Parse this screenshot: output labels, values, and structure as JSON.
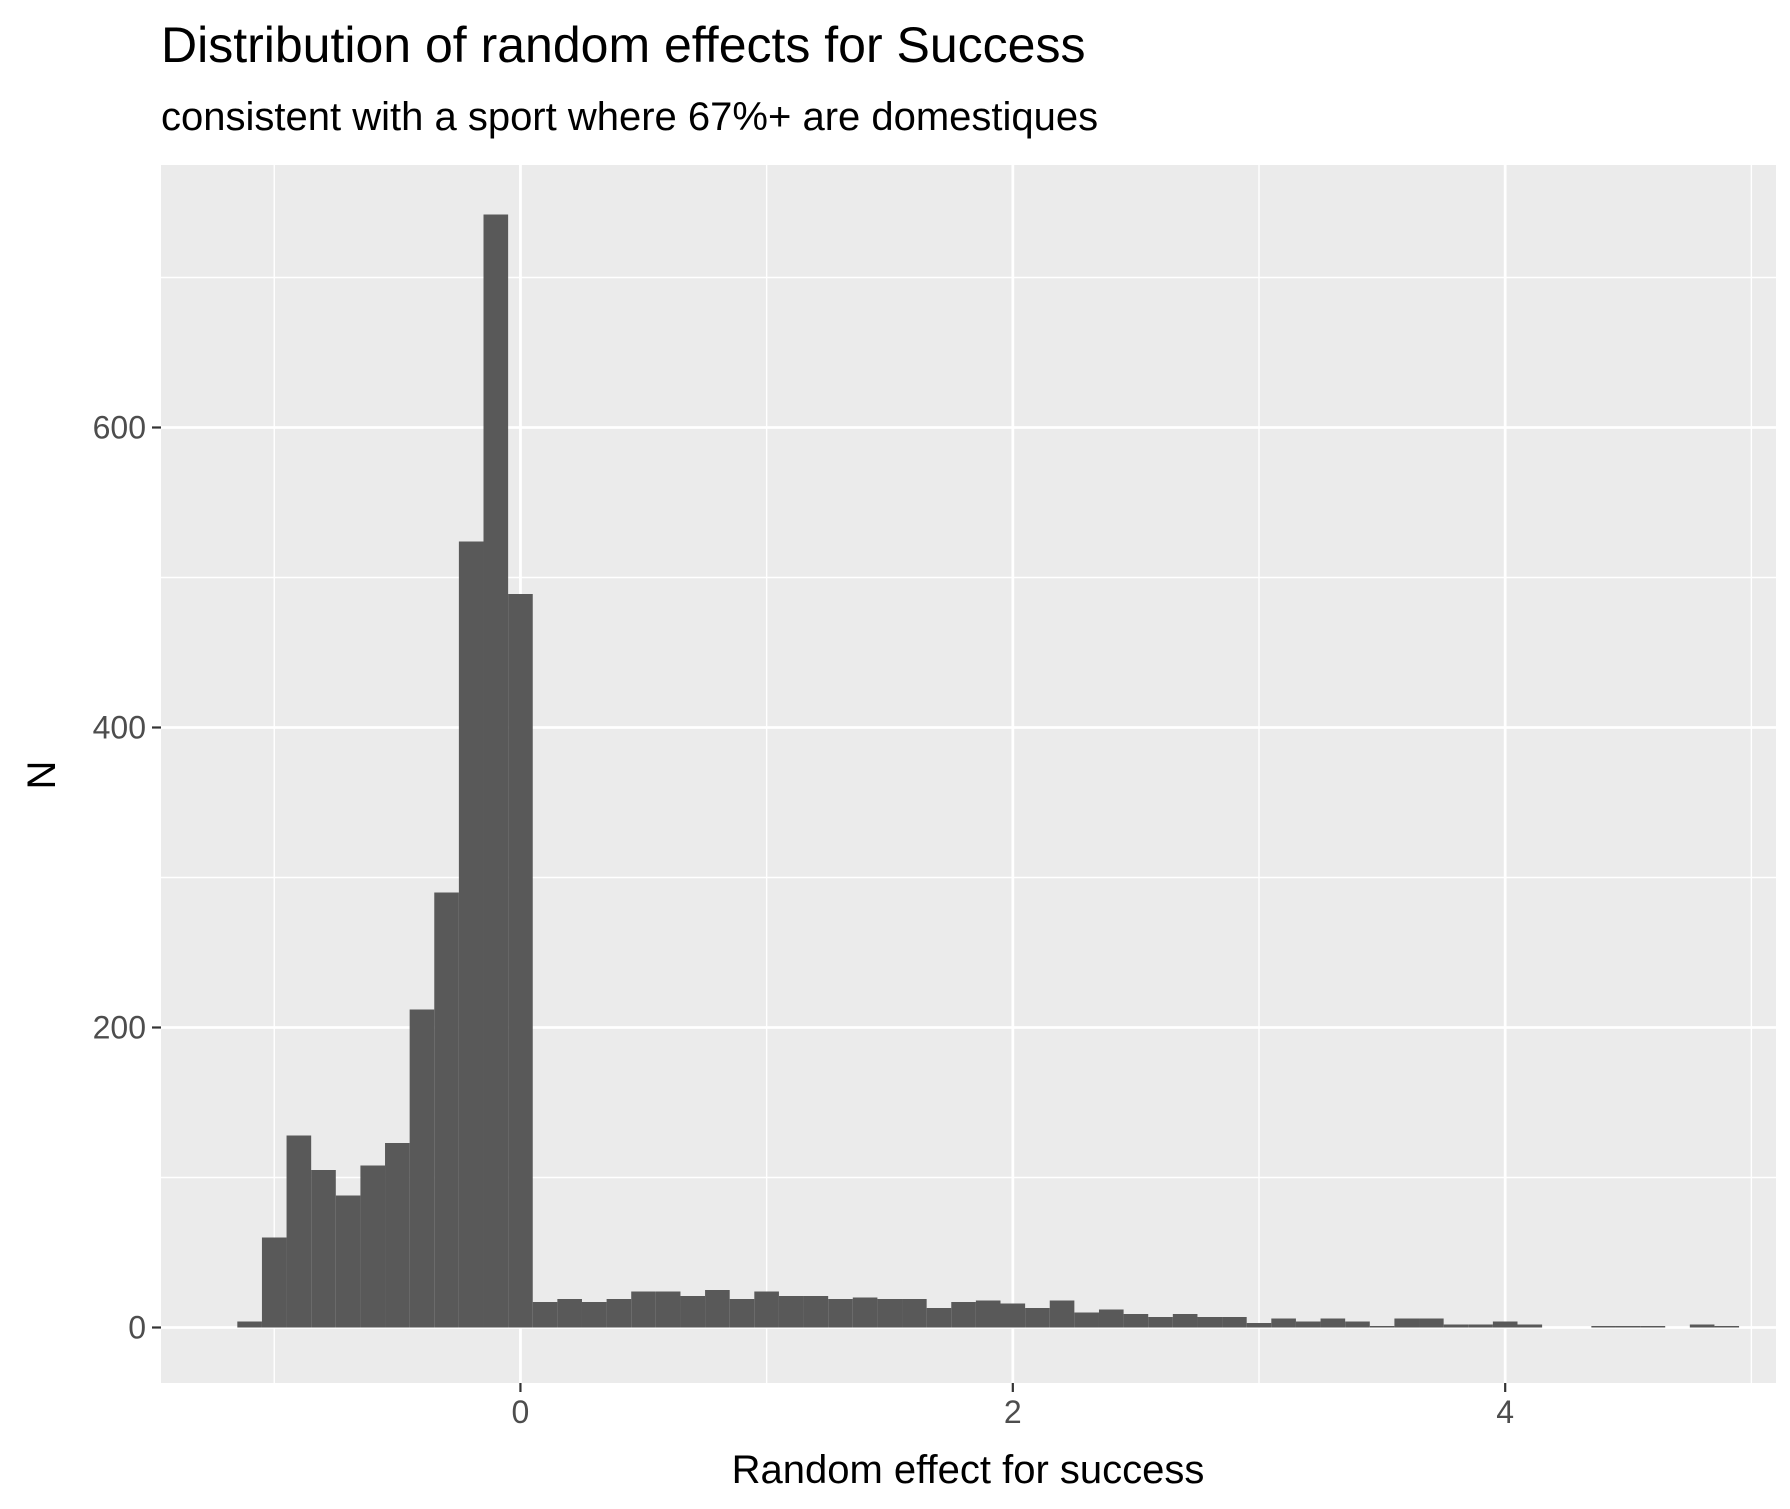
{
  "chart_data": {
    "type": "histogram",
    "title": "Distribution of random effects for Success",
    "subtitle": "consistent with a sport where 67%+ are domestiques",
    "xlabel": "Random effect for success",
    "ylabel": "N",
    "xlim": [
      -1.46,
      5.1
    ],
    "ylim": [
      -37,
      775
    ],
    "x_ticks": [
      0,
      2,
      4
    ],
    "x_tick_labels": [
      "0",
      "2",
      "4"
    ],
    "y_ticks": [
      0,
      200,
      400,
      600
    ],
    "y_tick_labels": [
      "0",
      "200",
      "400",
      "600"
    ],
    "bin_width": 0.1,
    "bins_start": [
      -1.15,
      -1.05,
      -0.95,
      -0.85,
      -0.75,
      -0.65,
      -0.55,
      -0.45,
      -0.35,
      -0.25,
      -0.15,
      -0.05,
      0.05,
      0.15,
      0.25,
      0.35,
      0.45,
      0.55,
      0.65,
      0.75,
      0.85,
      0.95,
      1.05,
      1.15,
      1.25,
      1.35,
      1.45,
      1.55,
      1.65,
      1.75,
      1.85,
      1.95,
      2.05,
      2.15,
      2.25,
      2.35,
      2.45,
      2.55,
      2.65,
      2.75,
      2.85,
      2.95,
      3.05,
      3.15,
      3.25,
      3.35,
      3.45,
      3.55,
      3.65,
      3.75,
      3.85,
      3.95,
      4.05,
      4.15,
      4.25,
      4.35,
      4.45,
      4.55,
      4.65,
      4.75,
      4.85
    ],
    "counts": [
      4,
      60,
      128,
      105,
      88,
      108,
      123,
      212,
      290,
      524,
      742,
      489,
      17,
      19,
      17,
      19,
      24,
      24,
      21,
      25,
      19,
      24,
      21,
      21,
      19,
      20,
      19,
      19,
      13,
      17,
      18,
      16,
      13,
      18,
      10,
      12,
      9,
      7,
      9,
      7,
      7,
      3,
      6,
      4,
      6,
      4,
      1,
      6,
      6,
      2,
      2,
      4,
      2,
      0,
      0,
      1,
      1,
      1,
      0,
      2,
      1
    ],
    "grid": true,
    "bar_color": "#595959",
    "panel_color": "#ebebeb",
    "grid_color": "#ffffff"
  }
}
